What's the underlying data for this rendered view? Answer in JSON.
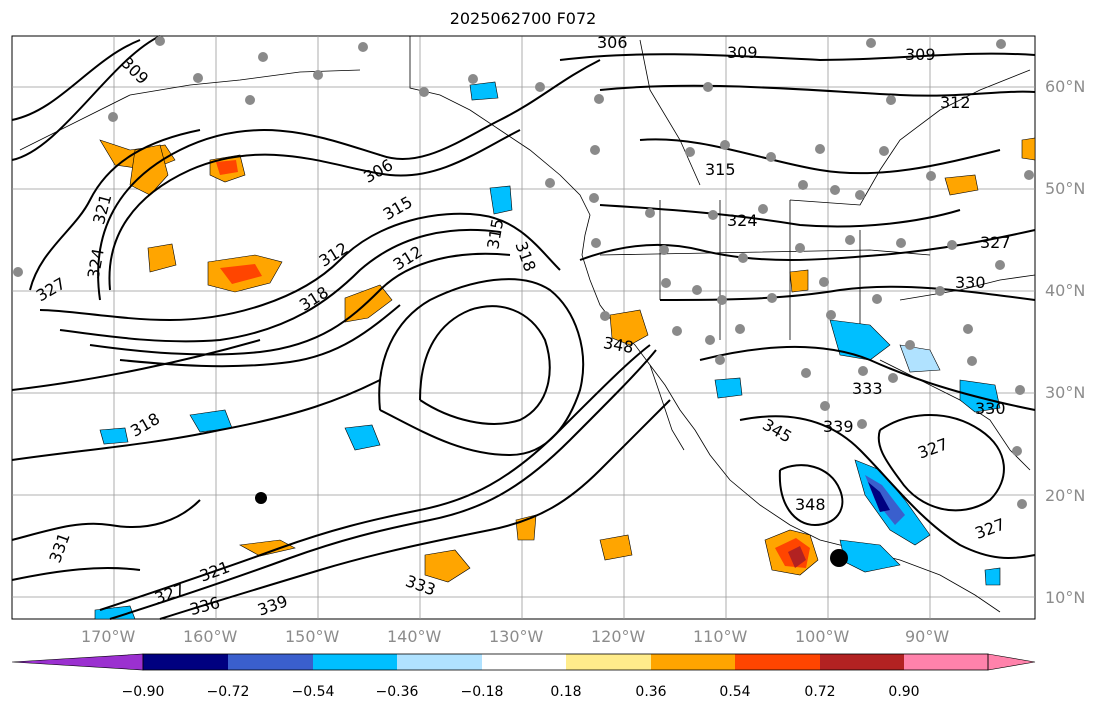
{
  "title": "2025062700 F072",
  "lat_labels": [
    "60°N",
    "50°N",
    "40°N",
    "30°N",
    "20°N",
    "10°N"
  ],
  "lon_labels": [
    "170°W",
    "160°W",
    "150°W",
    "140°W",
    "130°W",
    "120°W",
    "110°W",
    "100°W",
    "90°W"
  ],
  "contour_labels": [
    "306",
    "309",
    "309",
    "309",
    "312",
    "315",
    "324",
    "306",
    "315",
    "312",
    "312",
    "318",
    "315",
    "318",
    "321",
    "324",
    "327",
    "318",
    "331",
    "321",
    "327",
    "336",
    "339",
    "333",
    "348",
    "345",
    "339",
    "348",
    "333",
    "330",
    "327",
    "327",
    "330",
    "327"
  ],
  "colorbar": {
    "ticks": [
      "−0.90",
      "−0.72",
      "−0.54",
      "−0.36",
      "−0.18",
      "0.18",
      "0.36",
      "0.54",
      "0.72",
      "0.90"
    ],
    "colors": [
      "#9b30d0",
      "#000080",
      "#3a5fcd",
      "#00bfff",
      "#b0e2ff",
      "#ffffff",
      "#ffec8b",
      "#ffa500",
      "#ff4500",
      "#b22222",
      "#ff82ab"
    ]
  }
}
